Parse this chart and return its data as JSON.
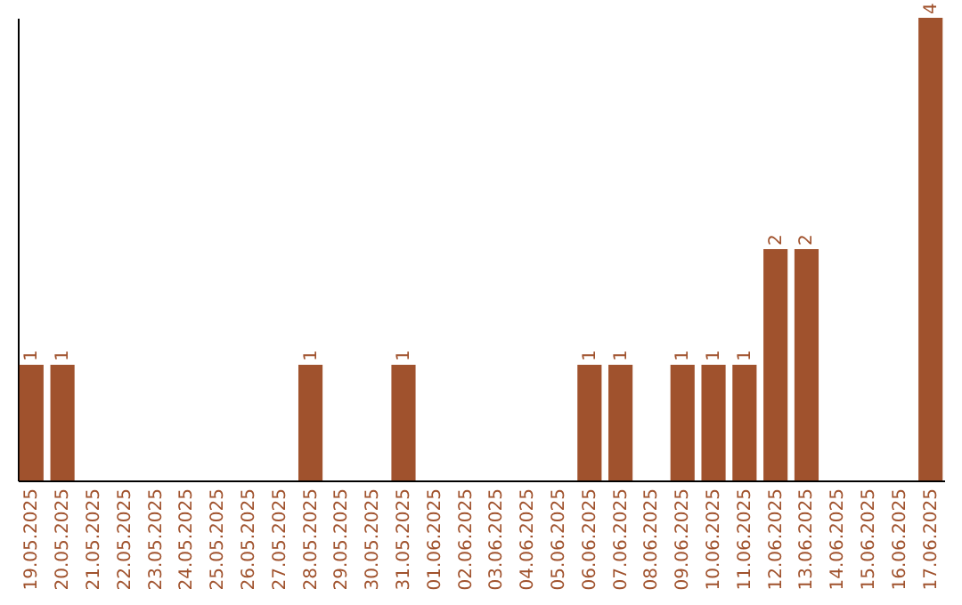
{
  "chart_data": {
    "type": "bar",
    "categories": [
      "19.05.2025",
      "20.05.2025",
      "21.05.2025",
      "22.05.2025",
      "23.05.2025",
      "24.05.2025",
      "25.05.2025",
      "26.05.2025",
      "27.05.2025",
      "28.05.2025",
      "29.05.2025",
      "30.05.2025",
      "31.05.2025",
      "01.06.2025",
      "02.06.2025",
      "03.06.2025",
      "04.06.2025",
      "05.06.2025",
      "06.06.2025",
      "07.06.2025",
      "08.06.2025",
      "09.06.2025",
      "10.06.2025",
      "11.06.2025",
      "12.06.2025",
      "13.06.2025",
      "14.06.2025",
      "15.06.2025",
      "16.06.2025",
      "17.06.2025"
    ],
    "values": [
      1,
      1,
      0,
      0,
      0,
      0,
      0,
      0,
      0,
      1,
      0,
      0,
      1,
      0,
      0,
      0,
      0,
      0,
      1,
      1,
      0,
      1,
      1,
      1,
      2,
      2,
      0,
      0,
      0,
      4
    ],
    "value_labels": [
      "1",
      "1",
      null,
      null,
      null,
      null,
      null,
      null,
      null,
      "1",
      null,
      null,
      "1",
      null,
      null,
      null,
      null,
      null,
      "1",
      "1",
      null,
      "1",
      "1",
      "1",
      "2",
      "2",
      null,
      null,
      null,
      "4"
    ],
    "color": "#a0522d"
  }
}
